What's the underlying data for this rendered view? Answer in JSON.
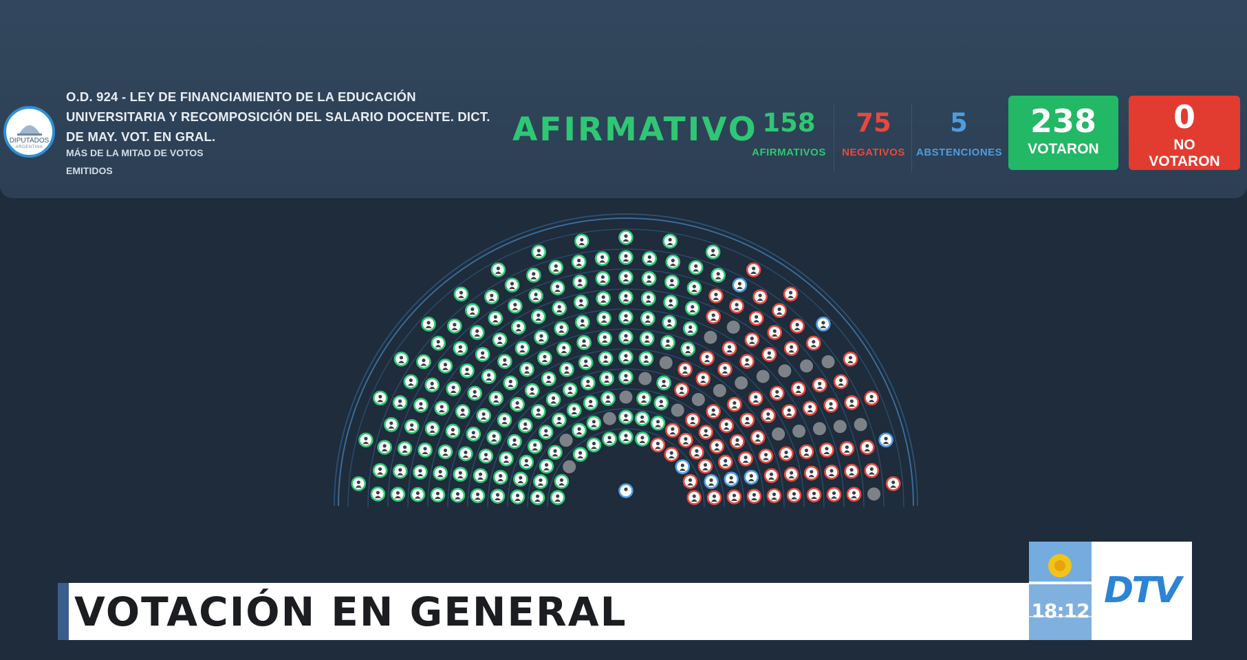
{
  "header": {
    "logo": {
      "name": "DIPUTADOS",
      "country": "ARGENTINA"
    },
    "title": "O.D. 924 - LEY DE FINANCIAMIENTO DE LA EDUCACIÓN UNIVERSITARIA Y RECOMPOSICIÓN DEL SALARIO DOCENTE. DICT. DE MAY. VOT. EN GRAL.",
    "criteria": "MÁS DE LA MITAD DE VOTOS EMITIDOS",
    "result": "AFIRMATIVO",
    "stats": [
      {
        "value": "158",
        "label": "AFIRMATIVOS",
        "color": "#2fc774"
      },
      {
        "value": "75",
        "label": "NEGATIVOS",
        "color": "#e8493d"
      },
      {
        "value": "5",
        "label": "ABSTENCIONES",
        "color": "#4f9ce0"
      }
    ],
    "voted": {
      "value": "238",
      "label": "VOTARON",
      "color": "#22b865"
    },
    "not_voted": {
      "value": "0",
      "label_line1": "NO",
      "label_line2": "VOTARON",
      "color": "#e23b2f"
    }
  },
  "chamber": {
    "rows": 11,
    "seat_counts": [
      13,
      17,
      19,
      21,
      23,
      25,
      27,
      29,
      31,
      33,
      19
    ],
    "affirmative_color": "#2fc774",
    "negative_color": "#e8493d",
    "abstention_color": "#4f9ce0",
    "absent_color": "#8a8f95",
    "president_color": "#4f9ce0"
  },
  "lower_third": {
    "headline": "VOTACIÓN EN GENERAL",
    "time": "18:12",
    "channel": "DTV"
  }
}
